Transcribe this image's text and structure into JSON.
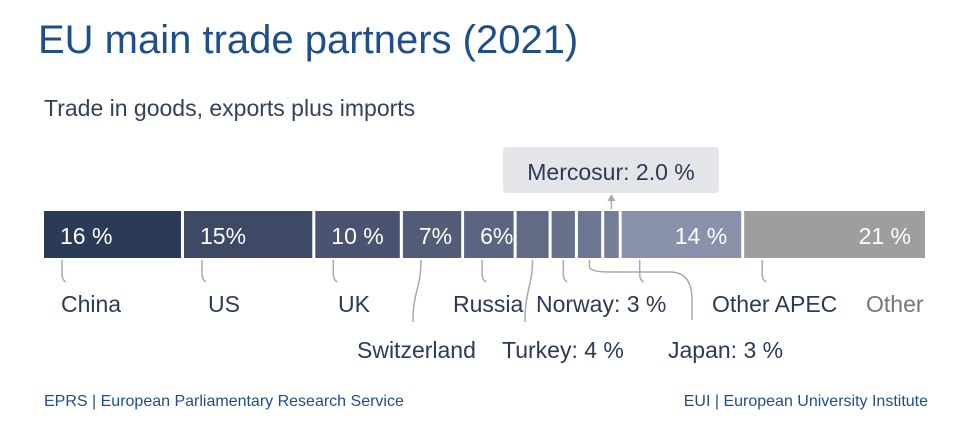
{
  "title": "EU main trade partners (2021)",
  "subtitle": "Trade in goods, exports plus imports",
  "footer": {
    "left": "EPRS | European Parliamentary Research Service",
    "right": "EUI | European University Institute"
  },
  "chart_data": {
    "type": "bar",
    "orientation": "stacked-horizontal",
    "unit": "%",
    "segments": [
      {
        "name": "China",
        "value": 16,
        "bar_label": "16 %",
        "label": "China",
        "color": "#2b3a55"
      },
      {
        "name": "US",
        "value": 15,
        "bar_label": "15%",
        "label": "US",
        "color": "#3e4966"
      },
      {
        "name": "UK",
        "value": 10,
        "bar_label": "10 %",
        "label": "UK",
        "color": "#4a5470"
      },
      {
        "name": "Switzerland",
        "value": 7,
        "bar_label": "7%",
        "label": "Switzerland",
        "color": "#545d78"
      },
      {
        "name": "Russia",
        "value": 6,
        "bar_label": "6%",
        "label": "Russia",
        "color": "#5b6480"
      },
      {
        "name": "Turkey",
        "value": 4,
        "bar_label": "",
        "label": "Turkey: 4 %",
        "color": "#626b86"
      },
      {
        "name": "Norway",
        "value": 3,
        "bar_label": "",
        "label": "Norway: 3 %",
        "color": "#68718c"
      },
      {
        "name": "Japan",
        "value": 3,
        "bar_label": "",
        "label": "Japan: 3 %",
        "color": "#6e7792"
      },
      {
        "name": "Mercosur",
        "value": 2.0,
        "bar_label": "",
        "label": "Mercosur: 2.0 %",
        "color": "#747d98"
      },
      {
        "name": "Other APEC",
        "value": 14,
        "bar_label": "14 %",
        "label": "Other APEC",
        "color": "#8a91ab"
      },
      {
        "name": "Other",
        "value": 21,
        "bar_label": "21 %",
        "label": "Other",
        "color": "#9e9e9e"
      }
    ],
    "label_color": "#2b3a55",
    "other_label_color": "#777777",
    "callout_bg": "#e4e5e9",
    "connector_color": "#aaaaaa"
  }
}
